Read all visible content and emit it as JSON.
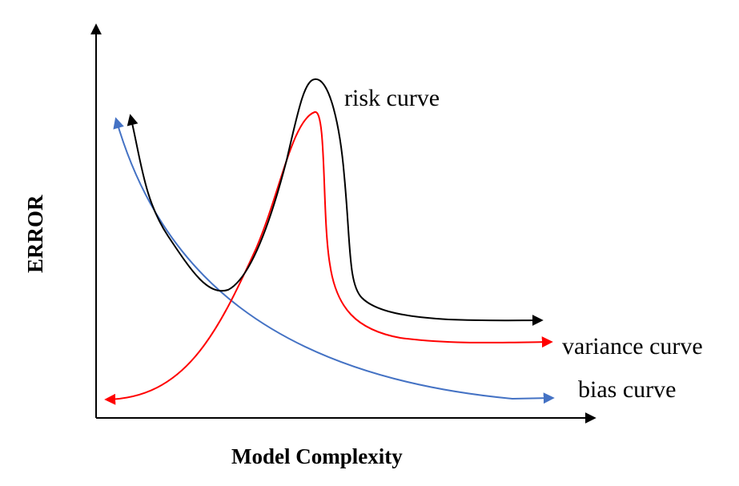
{
  "labels": {
    "x_axis": "Model Complexity",
    "y_axis": "ERROR",
    "risk": "risk curve",
    "variance": "variance curve",
    "bias": "bias curve"
  },
  "colors": {
    "axis": "#000000",
    "risk": "#000000",
    "variance": "#ff0000",
    "bias": "#4472c4"
  }
}
